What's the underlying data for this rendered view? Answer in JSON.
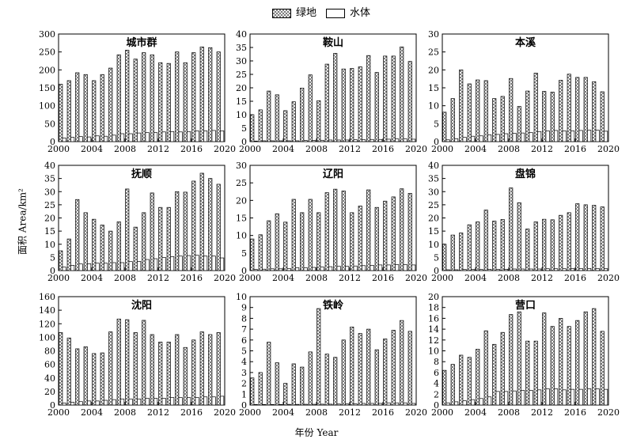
{
  "legend": {
    "green_label": "绿地",
    "water_label": "水体"
  },
  "axis_labels": {
    "y": "面积 Area/km²",
    "x": "年份 Year"
  },
  "chart_data": [
    {
      "type": "bar",
      "title": "城市群",
      "x": [
        2000,
        2001,
        2002,
        2003,
        2004,
        2005,
        2006,
        2007,
        2008,
        2009,
        2010,
        2011,
        2012,
        2013,
        2014,
        2015,
        2016,
        2017,
        2018,
        2019
      ],
      "ylim": [
        0,
        300
      ],
      "yticks": [
        0,
        50,
        100,
        150,
        200,
        250,
        300
      ],
      "xticks": [
        "2000",
        "2004",
        "2008",
        "2012",
        "2016",
        "2020"
      ],
      "series": [
        {
          "name": "绿地",
          "values": [
            160,
            170,
            192,
            187,
            170,
            187,
            205,
            242,
            255,
            230,
            248,
            242,
            220,
            218,
            250,
            220,
            248,
            264,
            262,
            250
          ]
        },
        {
          "name": "水体",
          "values": [
            10,
            12,
            14,
            13,
            16,
            15,
            18,
            22,
            22,
            24,
            25,
            25,
            27,
            28,
            27,
            28,
            30,
            30,
            31,
            30
          ]
        }
      ]
    },
    {
      "type": "bar",
      "title": "鞍山",
      "x": [
        2000,
        2001,
        2002,
        2003,
        2004,
        2005,
        2006,
        2007,
        2008,
        2009,
        2010,
        2011,
        2012,
        2013,
        2014,
        2015,
        2016,
        2017,
        2018,
        2019
      ],
      "ylim": [
        0,
        40
      ],
      "yticks": [
        0,
        5,
        10,
        15,
        20,
        25,
        30,
        35,
        40
      ],
      "xticks": [
        "2000",
        "2004",
        "2008",
        "2012",
        "2016",
        "2020"
      ],
      "series": [
        {
          "name": "绿地",
          "values": [
            10,
            11.8,
            18.8,
            17.4,
            11.5,
            14.8,
            19.9,
            24.8,
            15.2,
            28.8,
            32.8,
            27,
            27.2,
            27.8,
            32,
            25.7,
            31.8,
            31.8,
            35.2,
            29.8
          ]
        },
        {
          "name": "水体",
          "values": [
            0.2,
            0.3,
            0.3,
            0.3,
            0.3,
            0.3,
            0.4,
            0.4,
            0.5,
            0.6,
            0.6,
            0.6,
            0.7,
            0.7,
            0.8,
            0.8,
            0.9,
            1,
            1,
            0.9
          ]
        }
      ]
    },
    {
      "type": "bar",
      "title": "本溪",
      "x": [
        2000,
        2001,
        2002,
        2003,
        2004,
        2005,
        2006,
        2007,
        2008,
        2009,
        2010,
        2011,
        2012,
        2013,
        2014,
        2015,
        2016,
        2017,
        2018,
        2019
      ],
      "ylim": [
        0,
        30
      ],
      "yticks": [
        0,
        5,
        10,
        15,
        20,
        25,
        30
      ],
      "xticks": [
        "2000",
        "2004",
        "2008",
        "2012",
        "2016",
        "2020"
      ],
      "series": [
        {
          "name": "绿地",
          "values": [
            8.2,
            12,
            20,
            16.1,
            17.2,
            17,
            12,
            12.6,
            17.6,
            9.8,
            14.1,
            19.1,
            14,
            13.8,
            17.1,
            18.8,
            17.9,
            17.9,
            16.7,
            13.9
          ]
        },
        {
          "name": "水体",
          "values": [
            0.5,
            0.8,
            1.2,
            1.5,
            1.6,
            1.9,
            2,
            2.2,
            2.3,
            2.4,
            2.5,
            2.8,
            3,
            3.1,
            3,
            3,
            3.1,
            3.2,
            3.2,
            2.9
          ]
        }
      ]
    },
    {
      "type": "bar",
      "title": "抚顺",
      "x": [
        2000,
        2001,
        2002,
        2003,
        2004,
        2005,
        2006,
        2007,
        2008,
        2009,
        2010,
        2011,
        2012,
        2013,
        2014,
        2015,
        2016,
        2017,
        2018,
        2019
      ],
      "ylim": [
        0,
        40
      ],
      "yticks": [
        0,
        5,
        10,
        15,
        20,
        25,
        30,
        35,
        40
      ],
      "xticks": [
        "2000",
        "2004",
        "2008",
        "2012",
        "2016",
        "2020"
      ],
      "series": [
        {
          "name": "绿地",
          "values": [
            7.5,
            12,
            27,
            22,
            19.5,
            17.3,
            15,
            18.5,
            31,
            16.5,
            22,
            29.5,
            24,
            24,
            30,
            29.8,
            34,
            37,
            35,
            32.8
          ]
        },
        {
          "name": "水体",
          "values": [
            1.3,
            2,
            2.5,
            2.6,
            2.8,
            2.8,
            3,
            3,
            3.4,
            3.5,
            4.2,
            4.5,
            5,
            5.3,
            5.5,
            5.7,
            5.8,
            5.5,
            5.5,
            4.8
          ]
        }
      ]
    },
    {
      "type": "bar",
      "title": "辽阳",
      "x": [
        2000,
        2001,
        2002,
        2003,
        2004,
        2005,
        2006,
        2007,
        2008,
        2009,
        2010,
        2011,
        2012,
        2013,
        2014,
        2015,
        2016,
        2017,
        2018,
        2019
      ],
      "ylim": [
        0,
        30
      ],
      "yticks": [
        0,
        5,
        10,
        15,
        20,
        25,
        30
      ],
      "xticks": [
        "2000",
        "2004",
        "2008",
        "2012",
        "2016",
        "2020"
      ],
      "series": [
        {
          "name": "绿地",
          "values": [
            9,
            10.2,
            14.2,
            16.2,
            13.8,
            20.3,
            16.5,
            20.3,
            16.5,
            22.2,
            23.2,
            22.7,
            16.5,
            18.4,
            23,
            18,
            19.8,
            21,
            23.3,
            22
          ]
        },
        {
          "name": "水体",
          "values": [
            0.3,
            0.4,
            0.5,
            0.5,
            0.6,
            0.8,
            0.8,
            0.9,
            1,
            1.1,
            1.2,
            1.2,
            1.3,
            1.4,
            1.5,
            1.6,
            1.6,
            1.7,
            1.7,
            1.6
          ]
        }
      ]
    },
    {
      "type": "bar",
      "title": "盘锦",
      "x": [
        2000,
        2001,
        2002,
        2003,
        2004,
        2005,
        2006,
        2007,
        2008,
        2009,
        2010,
        2011,
        2012,
        2013,
        2014,
        2015,
        2016,
        2017,
        2018,
        2019
      ],
      "ylim": [
        0,
        40
      ],
      "yticks": [
        0,
        5,
        10,
        15,
        20,
        25,
        30,
        35,
        40
      ],
      "xticks": [
        "2000",
        "2004",
        "2008",
        "2012",
        "2016",
        "2020"
      ],
      "series": [
        {
          "name": "绿地",
          "values": [
            10,
            13.5,
            14.3,
            17.4,
            18.5,
            23,
            18.8,
            19.4,
            31.4,
            25.8,
            15.8,
            18.5,
            19.5,
            19.3,
            21,
            22,
            25.4,
            25,
            24.8,
            24.2
          ]
        },
        {
          "name": "水体",
          "values": [
            0.3,
            0.3,
            0.4,
            0.4,
            0.4,
            0.5,
            0.5,
            0.5,
            0.6,
            0.6,
            0.6,
            0.6,
            0.7,
            0.7,
            0.7,
            0.7,
            0.8,
            0.8,
            0.8,
            0.7
          ]
        }
      ]
    },
    {
      "type": "bar",
      "title": "沈阳",
      "x": [
        2000,
        2001,
        2002,
        2003,
        2004,
        2005,
        2006,
        2007,
        2008,
        2009,
        2010,
        2011,
        2012,
        2013,
        2014,
        2015,
        2016,
        2017,
        2018,
        2019
      ],
      "ylim": [
        0,
        160
      ],
      "yticks": [
        0,
        20,
        40,
        60,
        80,
        100,
        120,
        140,
        160
      ],
      "xticks": [
        "2000",
        "2004",
        "2008",
        "2012",
        "2016",
        "2020"
      ],
      "series": [
        {
          "name": "绿地",
          "values": [
            107,
            99,
            83,
            86,
            76,
            77,
            108,
            127,
            126,
            107,
            125,
            104,
            93,
            93,
            104,
            85,
            96,
            108,
            104,
            107
          ]
        },
        {
          "name": "水体",
          "values": [
            3,
            4,
            5,
            6,
            6,
            7,
            8,
            9,
            9,
            9,
            10,
            10,
            10,
            11,
            11,
            11,
            11,
            12,
            12,
            13
          ]
        }
      ]
    },
    {
      "type": "bar",
      "title": "铁岭",
      "x": [
        2000,
        2001,
        2002,
        2003,
        2004,
        2005,
        2006,
        2007,
        2008,
        2009,
        2010,
        2011,
        2012,
        2013,
        2014,
        2015,
        2016,
        2017,
        2018,
        2019
      ],
      "ylim": [
        0,
        10
      ],
      "yticks": [
        0,
        1,
        2,
        3,
        4,
        5,
        6,
        7,
        8,
        9,
        10
      ],
      "xticks": [
        "2000",
        "2004",
        "2008",
        "2012",
        "2016",
        "2020"
      ],
      "series": [
        {
          "name": "绿地",
          "values": [
            2.5,
            3,
            5.8,
            3.9,
            2,
            3.8,
            3.5,
            4.9,
            8.9,
            4.7,
            4.4,
            6,
            7.2,
            6.6,
            7,
            5.1,
            6.1,
            6.9,
            7.8,
            6.8
          ]
        },
        {
          "name": "水体",
          "values": [
            0.05,
            0.05,
            0.05,
            0.05,
            0.06,
            0.06,
            0.07,
            0.07,
            0.08,
            0.08,
            0.09,
            0.1,
            0.1,
            0.15,
            0.15,
            0.15,
            0.2,
            0.2,
            0.2,
            0.15
          ]
        }
      ]
    },
    {
      "type": "bar",
      "title": "营口",
      "x": [
        2000,
        2001,
        2002,
        2003,
        2004,
        2005,
        2006,
        2007,
        2008,
        2009,
        2010,
        2011,
        2012,
        2013,
        2014,
        2015,
        2016,
        2017,
        2018,
        2019
      ],
      "ylim": [
        0,
        20
      ],
      "yticks": [
        0,
        2,
        4,
        6,
        8,
        10,
        12,
        14,
        16,
        18,
        20
      ],
      "xticks": [
        "2000",
        "2004",
        "2008",
        "2012",
        "2016",
        "2020"
      ],
      "series": [
        {
          "name": "绿地",
          "values": [
            6.4,
            7.5,
            9.2,
            8.8,
            10.3,
            13.7,
            11.2,
            13.4,
            16.7,
            17.2,
            11.8,
            11.8,
            17,
            14.5,
            16,
            14.5,
            15.6,
            17.2,
            17.8,
            13.6
          ]
        },
        {
          "name": "水体",
          "values": [
            0.4,
            0.6,
            0.8,
            1,
            1.2,
            1.5,
            2.5,
            2.5,
            2.6,
            2.7,
            2.7,
            2.8,
            3,
            3,
            2.8,
            2.9,
            2.9,
            3,
            3,
            2.9
          ]
        }
      ]
    }
  ]
}
